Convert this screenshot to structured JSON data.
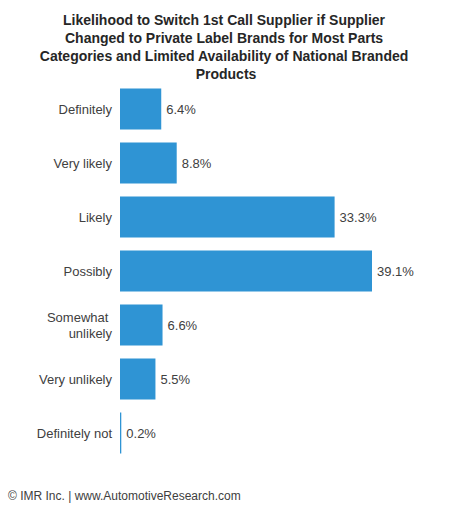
{
  "chart_data": {
    "type": "bar",
    "title": "Likelihood to Switch 1st Call Supplier if Supplier Changed to Private Label Brands for Most Parts Categories and Limited Availability of National Branded Products",
    "categories": [
      "Definitely",
      "Very likely",
      "Likely",
      "Possibly",
      "Somewhat unlikely",
      "Very unlikely",
      "Definitely not"
    ],
    "values": [
      6.4,
      8.8,
      33.3,
      39.1,
      6.6,
      5.5,
      0.2
    ],
    "value_labels": [
      "6.4%",
      "8.8%",
      "33.3%",
      "39.1%",
      "6.6%",
      "5.5%",
      "0.2%"
    ],
    "color": "#2f94d4",
    "orientation": "horizontal",
    "data_labels": true,
    "tick_labels": "y",
    "grid": false,
    "xlim": [
      0,
      45
    ],
    "xticks": [],
    "annotations": [
      "© IMR Inc. | www.AutomotiveResearch.com"
    ]
  }
}
